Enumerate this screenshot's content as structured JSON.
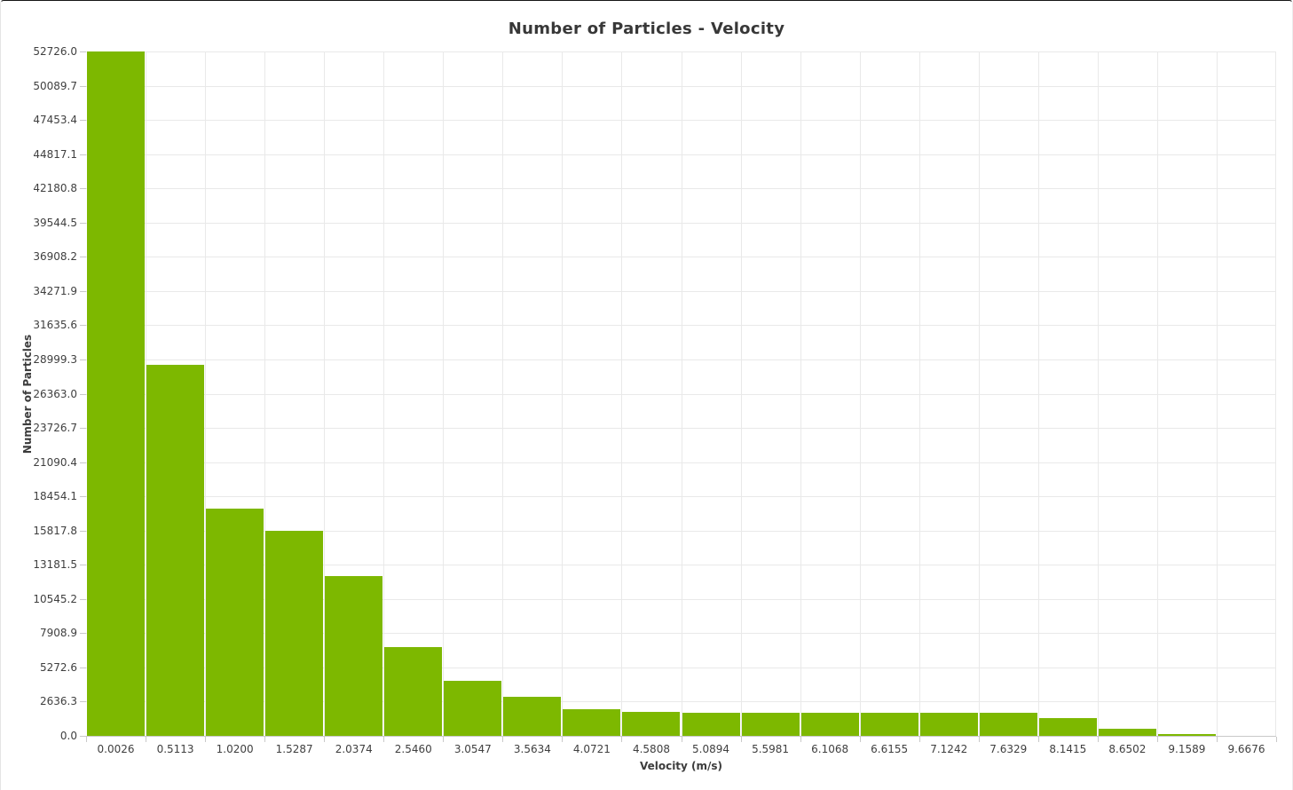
{
  "chart": {
    "title": "Number of Particles - Velocity",
    "x_axis_title": "Velocity (m/s)",
    "y_axis_title": "Number of Particles"
  },
  "chart_data": {
    "type": "bar",
    "title": "Number of Particles - Velocity",
    "xlabel": "Velocity (m/s)",
    "ylabel": "Number of Particles",
    "categories": [
      "0.0026",
      "0.5113",
      "1.0200",
      "1.5287",
      "2.0374",
      "2.5460",
      "3.0547",
      "3.5634",
      "4.0721",
      "4.5808",
      "5.0894",
      "5.5981",
      "6.1068",
      "6.6155",
      "7.1242",
      "7.6329",
      "8.1415",
      "8.6502",
      "9.1589",
      "9.6676"
    ],
    "values": [
      52726,
      28600,
      17530,
      15820,
      12320,
      6860,
      4270,
      3010,
      2070,
      1850,
      1790,
      1780,
      1750,
      1750,
      1750,
      1750,
      1340,
      550,
      140,
      0
    ],
    "y_ticks": [
      "0.0",
      "2636.3",
      "5272.6",
      "7908.9",
      "10545.2",
      "13181.5",
      "15817.8",
      "18454.1",
      "21090.4",
      "23726.7",
      "26363.0",
      "28999.3",
      "31635.6",
      "34271.9",
      "36908.2",
      "39544.5",
      "42180.8",
      "44817.1",
      "47453.4",
      "50089.7",
      "52726.0"
    ],
    "ylim": [
      0,
      52726
    ],
    "grid": "both",
    "legend": "none"
  },
  "colors": {
    "bar": "#7db800",
    "grid": "#e9e9e9",
    "axis_line": "#c9c9c9",
    "tick_label": "#3f3f3f",
    "title": "#383838"
  }
}
